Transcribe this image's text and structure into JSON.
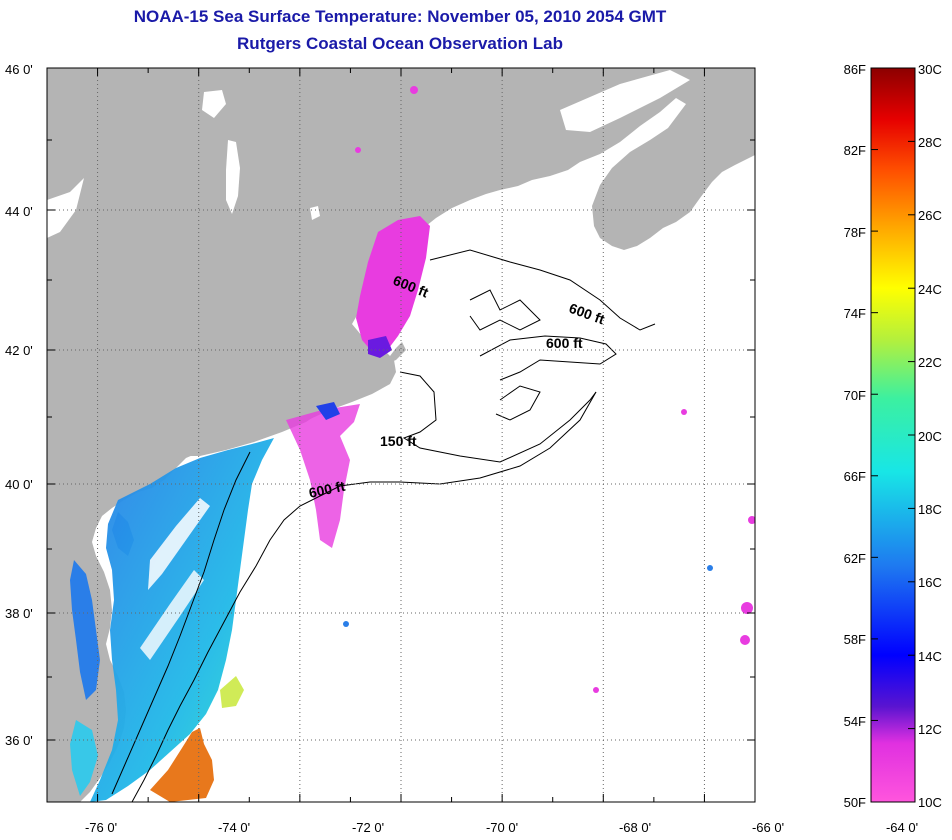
{
  "title": "NOAA-15 Sea Surface Temperature:  November 05, 2010 2054 GMT",
  "subtitle": "Rutgers Coastal Ocean Observation Lab",
  "lat_labels": [
    "46 0'",
    "44 0'",
    "42 0'",
    "40 0'",
    "38 0'",
    "36 0'"
  ],
  "lon_labels": [
    "-76 0'",
    "-74 0'",
    "-72 0'",
    "-70 0'",
    "-68 0'",
    "-66 0'",
    "-64 0'"
  ],
  "contour_labels": [
    "600 ft",
    "600 ft",
    "600 ft",
    "150 ft",
    "600 ft"
  ],
  "colorbar": {
    "fahrenheit": [
      "86F",
      "82F",
      "78F",
      "74F",
      "70F",
      "66F",
      "62F",
      "58F",
      "54F",
      "50F"
    ],
    "celsius": [
      "30C",
      "28C",
      "26C",
      "24C",
      "22C",
      "20C",
      "18C",
      "16C",
      "14C",
      "12C",
      "10C"
    ]
  },
  "colors": {
    "land": "#b4b4b4",
    "title": "#1a1aa8"
  }
}
